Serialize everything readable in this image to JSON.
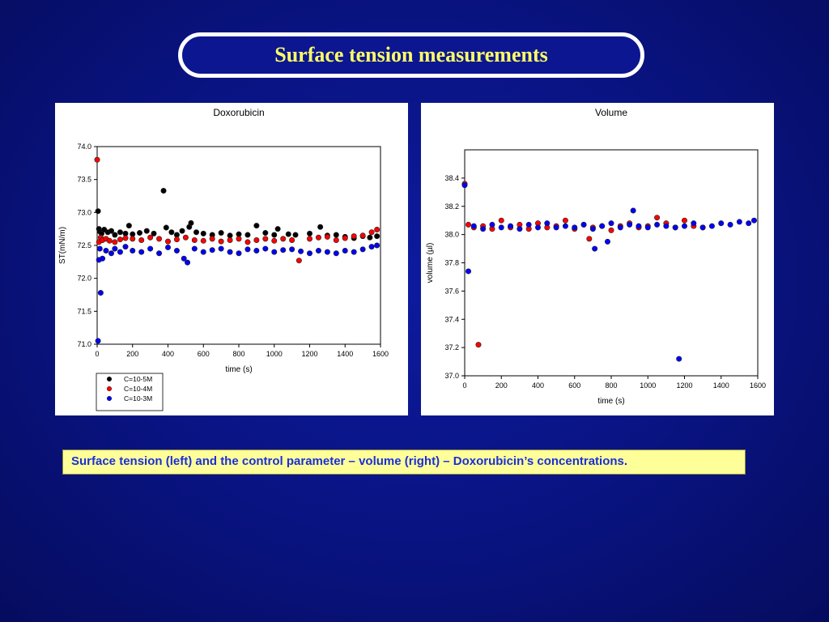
{
  "slide": {
    "title": "Surface tension measurements",
    "caption": "Surface tension (left) and the control parameter – volume (right) – Doxorubicin’s concentrations."
  },
  "colors": {
    "background": "#091380",
    "title_text": "#ffff66",
    "caption_bg": "#ffff99",
    "caption_text": "#1a2ed8"
  },
  "chart_data": [
    {
      "type": "scatter",
      "title": "Doxorubicin",
      "xlabel": "time (s)",
      "ylabel": "ST(mN/m)",
      "xlim": [
        0,
        1600
      ],
      "ylim": [
        71.0,
        74.0
      ],
      "xticks": [
        "0",
        "200",
        "400",
        "600",
        "800",
        "1000",
        "1200",
        "1400",
        "1600"
      ],
      "yticks": [
        "71.0",
        "71.5",
        "72.0",
        "72.5",
        "73.0",
        "73.5",
        "74.0"
      ],
      "legend_position": "bottom-left",
      "series": [
        {
          "name": "C=10-5M",
          "color": "#000000",
          "points": [
            [
              5,
              73.02
            ],
            [
              10,
              72.75
            ],
            [
              15,
              72.71
            ],
            [
              25,
              72.68
            ],
            [
              40,
              72.74
            ],
            [
              60,
              72.7
            ],
            [
              80,
              72.72
            ],
            [
              100,
              72.66
            ],
            [
              130,
              72.7
            ],
            [
              160,
              72.68
            ],
            [
              180,
              72.8
            ],
            [
              200,
              72.67
            ],
            [
              240,
              72.69
            ],
            [
              280,
              72.72
            ],
            [
              320,
              72.68
            ],
            [
              375,
              73.33
            ],
            [
              390,
              72.77
            ],
            [
              420,
              72.7
            ],
            [
              450,
              72.66
            ],
            [
              480,
              72.72
            ],
            [
              520,
              72.78
            ],
            [
              530,
              72.84
            ],
            [
              560,
              72.7
            ],
            [
              600,
              72.68
            ],
            [
              650,
              72.66
            ],
            [
              700,
              72.69
            ],
            [
              750,
              72.65
            ],
            [
              800,
              72.67
            ],
            [
              850,
              72.66
            ],
            [
              900,
              72.8
            ],
            [
              950,
              72.69
            ],
            [
              1000,
              72.66
            ],
            [
              1020,
              72.75
            ],
            [
              1080,
              72.67
            ],
            [
              1120,
              72.66
            ],
            [
              1200,
              72.68
            ],
            [
              1260,
              72.78
            ],
            [
              1300,
              72.65
            ],
            [
              1350,
              72.66
            ],
            [
              1400,
              72.63
            ],
            [
              1450,
              72.61
            ],
            [
              1500,
              72.64
            ],
            [
              1540,
              72.62
            ],
            [
              1580,
              72.64
            ]
          ]
        },
        {
          "name": "C=10-4M",
          "color": "#ff0000",
          "points": [
            [
              0,
              73.8
            ],
            [
              10,
              72.55
            ],
            [
              20,
              72.62
            ],
            [
              30,
              72.58
            ],
            [
              50,
              72.6
            ],
            [
              70,
              72.57
            ],
            [
              100,
              72.55
            ],
            [
              130,
              72.59
            ],
            [
              160,
              72.61
            ],
            [
              200,
              72.6
            ],
            [
              250,
              72.58
            ],
            [
              300,
              72.62
            ],
            [
              350,
              72.6
            ],
            [
              400,
              72.56
            ],
            [
              450,
              72.59
            ],
            [
              500,
              72.62
            ],
            [
              550,
              72.58
            ],
            [
              600,
              72.57
            ],
            [
              650,
              72.6
            ],
            [
              700,
              72.56
            ],
            [
              750,
              72.58
            ],
            [
              800,
              72.6
            ],
            [
              850,
              72.55
            ],
            [
              900,
              72.58
            ],
            [
              950,
              72.6
            ],
            [
              1000,
              72.57
            ],
            [
              1050,
              72.6
            ],
            [
              1100,
              72.58
            ],
            [
              1140,
              72.27
            ],
            [
              1200,
              72.6
            ],
            [
              1250,
              72.62
            ],
            [
              1300,
              72.63
            ],
            [
              1350,
              72.58
            ],
            [
              1400,
              72.61
            ],
            [
              1450,
              72.64
            ],
            [
              1500,
              72.65
            ],
            [
              1550,
              72.7
            ],
            [
              1580,
              72.74
            ]
          ]
        },
        {
          "name": "C=10-3M",
          "color": "#0000ff",
          "points": [
            [
              5,
              71.05
            ],
            [
              10,
              72.28
            ],
            [
              15,
              72.45
            ],
            [
              20,
              71.78
            ],
            [
              30,
              72.3
            ],
            [
              50,
              72.42
            ],
            [
              80,
              72.38
            ],
            [
              100,
              72.45
            ],
            [
              130,
              72.4
            ],
            [
              160,
              72.48
            ],
            [
              200,
              72.42
            ],
            [
              250,
              72.4
            ],
            [
              300,
              72.45
            ],
            [
              350,
              72.38
            ],
            [
              400,
              72.47
            ],
            [
              450,
              72.42
            ],
            [
              490,
              72.3
            ],
            [
              510,
              72.24
            ],
            [
              550,
              72.45
            ],
            [
              600,
              72.4
            ],
            [
              650,
              72.43
            ],
            [
              700,
              72.45
            ],
            [
              750,
              72.4
            ],
            [
              800,
              72.38
            ],
            [
              850,
              72.44
            ],
            [
              900,
              72.42
            ],
            [
              950,
              72.45
            ],
            [
              1000,
              72.4
            ],
            [
              1050,
              72.43
            ],
            [
              1100,
              72.44
            ],
            [
              1150,
              72.41
            ],
            [
              1200,
              72.38
            ],
            [
              1250,
              72.42
            ],
            [
              1300,
              72.4
            ],
            [
              1350,
              72.38
            ],
            [
              1400,
              72.42
            ],
            [
              1450,
              72.4
            ],
            [
              1500,
              72.44
            ],
            [
              1550,
              72.48
            ],
            [
              1580,
              72.5
            ]
          ]
        }
      ]
    },
    {
      "type": "scatter",
      "title": "Volume",
      "xlabel": "time (s)",
      "ylabel": "volume (µl)",
      "xlim": [
        0,
        1600
      ],
      "ylim": [
        37.0,
        38.6
      ],
      "xticks": [
        "0",
        "200",
        "400",
        "600",
        "800",
        "1000",
        "1200",
        "1400",
        "1600"
      ],
      "yticks": [
        "37.0",
        "37.2",
        "37.4",
        "37.6",
        "37.8",
        "38.0",
        "38.2",
        "38.4"
      ],
      "series": [
        {
          "name": "",
          "color": "#ff0000",
          "points": [
            [
              0,
              38.36
            ],
            [
              20,
              38.07
            ],
            [
              50,
              38.05
            ],
            [
              75,
              37.22
            ],
            [
              100,
              38.06
            ],
            [
              150,
              38.04
            ],
            [
              200,
              38.1
            ],
            [
              250,
              38.05
            ],
            [
              300,
              38.07
            ],
            [
              350,
              38.04
            ],
            [
              400,
              38.08
            ],
            [
              450,
              38.05
            ],
            [
              500,
              38.06
            ],
            [
              550,
              38.1
            ],
            [
              600,
              38.04
            ],
            [
              650,
              38.07
            ],
            [
              680,
              37.97
            ],
            [
              700,
              38.05
            ],
            [
              750,
              38.06
            ],
            [
              800,
              38.03
            ],
            [
              850,
              38.06
            ],
            [
              900,
              38.08
            ],
            [
              950,
              38.05
            ],
            [
              1000,
              38.06
            ],
            [
              1050,
              38.12
            ],
            [
              1100,
              38.08
            ],
            [
              1150,
              38.05
            ],
            [
              1200,
              38.1
            ],
            [
              1250,
              38.06
            ],
            [
              1300,
              38.05
            ]
          ]
        },
        {
          "name": "",
          "color": "#0000ff",
          "points": [
            [
              0,
              38.35
            ],
            [
              20,
              37.74
            ],
            [
              50,
              38.06
            ],
            [
              100,
              38.04
            ],
            [
              150,
              38.07
            ],
            [
              200,
              38.05
            ],
            [
              250,
              38.06
            ],
            [
              300,
              38.04
            ],
            [
              350,
              38.07
            ],
            [
              400,
              38.05
            ],
            [
              450,
              38.08
            ],
            [
              500,
              38.05
            ],
            [
              550,
              38.06
            ],
            [
              600,
              38.05
            ],
            [
              650,
              38.07
            ],
            [
              700,
              38.04
            ],
            [
              710,
              37.9
            ],
            [
              750,
              38.06
            ],
            [
              780,
              37.95
            ],
            [
              800,
              38.08
            ],
            [
              850,
              38.05
            ],
            [
              900,
              38.07
            ],
            [
              920,
              38.17
            ],
            [
              950,
              38.06
            ],
            [
              1000,
              38.05
            ],
            [
              1050,
              38.07
            ],
            [
              1100,
              38.06
            ],
            [
              1150,
              38.05
            ],
            [
              1170,
              37.12
            ],
            [
              1200,
              38.06
            ],
            [
              1250,
              38.08
            ],
            [
              1300,
              38.05
            ],
            [
              1350,
              38.06
            ],
            [
              1400,
              38.08
            ],
            [
              1450,
              38.07
            ],
            [
              1500,
              38.09
            ],
            [
              1550,
              38.08
            ],
            [
              1580,
              38.1
            ]
          ]
        }
      ]
    }
  ]
}
